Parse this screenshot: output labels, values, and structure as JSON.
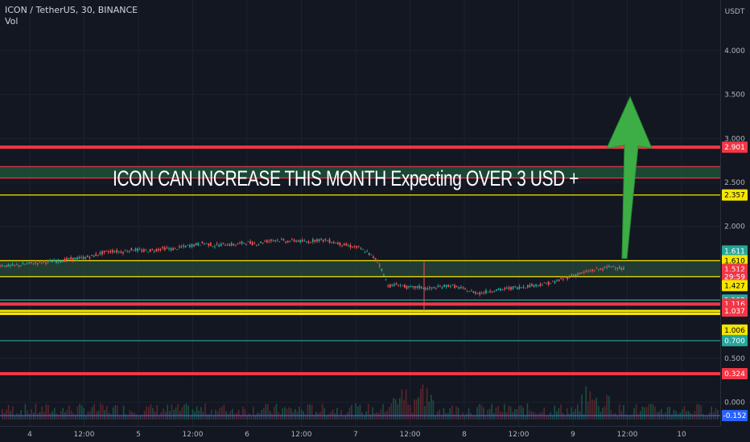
{
  "header": {
    "symbol_line": "ICON / TetherUS, 30, BINANCE",
    "indicator": "Vol"
  },
  "annotation": "ICON CAN INCREASE THIS MONTH Expecting OVER 3 USD +",
  "chart_data": {
    "type": "candlestick",
    "pair": "ICON / TetherUS",
    "interval": "30",
    "exchange": "BINANCE",
    "currency": "USDT",
    "y_ticks": [
      "4.000",
      "3.500",
      "3.000",
      "2.500",
      "2.000",
      "0.500",
      "0.000"
    ],
    "y_tick_values": [
      4.0,
      3.5,
      3.0,
      2.5,
      2.0,
      0.5,
      0.0
    ],
    "x_ticks": [
      "4",
      "12:00",
      "5",
      "12:00",
      "6",
      "12:00",
      "7",
      "12:00",
      "8",
      "12:00",
      "9",
      "12:00",
      "10"
    ],
    "horizontal_lines": [
      {
        "value": 2.901,
        "color": "#f23645"
      },
      {
        "value": 2.68,
        "color": "#f23645"
      },
      {
        "value": 2.55,
        "color": "#f23645"
      },
      {
        "value": 2.357,
        "color": "#f5e600"
      },
      {
        "value": 1.61,
        "color": "#f5e600"
      },
      {
        "value": 1.427,
        "color": "#f5e600"
      },
      {
        "value": 1.162,
        "color": "#26a69a"
      },
      {
        "value": 1.116,
        "color": "#f23645"
      },
      {
        "value": 1.037,
        "color": "#f5e600"
      },
      {
        "value": 1.006,
        "color": "#f5e600"
      },
      {
        "value": 0.7,
        "color": "#26a69a"
      },
      {
        "value": 0.324,
        "color": "#f23645"
      },
      {
        "value": -0.152,
        "color": "#2962ff"
      }
    ],
    "zones": [
      {
        "from": 2.55,
        "to": 2.68,
        "color": "#1e5a3c"
      },
      {
        "from": 1.427,
        "to": 1.61,
        "color": "#2a4a3a"
      }
    ],
    "price_badges": [
      {
        "label": "2.901",
        "value": 2.901,
        "bg": "#f23645",
        "fg": "#ffffff"
      },
      {
        "label": "2.357",
        "value": 2.357,
        "bg": "#f5e600",
        "fg": "#000000"
      },
      {
        "label": "1.611",
        "value": 1.72,
        "bg": "#26a69a",
        "fg": "#ffffff"
      },
      {
        "label": "1.610",
        "value": 1.61,
        "bg": "#f5e600",
        "fg": "#000000"
      },
      {
        "label": "1.512",
        "value": 1.512,
        "bg": "#f23645",
        "fg": "#ffffff"
      },
      {
        "label": "29:59",
        "value": 1.425,
        "bg": "#f23645",
        "fg": "#ffffff"
      },
      {
        "label": "1.427",
        "value": 1.327,
        "bg": "#f5e600",
        "fg": "#000000"
      },
      {
        "label": "1.162",
        "value": 1.162,
        "bg": "#26a69a",
        "fg": "#ffffff"
      },
      {
        "label": "1.116",
        "value": 1.116,
        "bg": "#f23645",
        "fg": "#ffffff"
      },
      {
        "label": "1.037",
        "value": 1.037,
        "bg": "#f23645",
        "fg": "#ffffff"
      },
      {
        "label": "1.006",
        "value": 0.82,
        "bg": "#f5e600",
        "fg": "#000000"
      },
      {
        "label": "0.700",
        "value": 0.7,
        "bg": "#26a69a",
        "fg": "#ffffff"
      },
      {
        "label": "0.324",
        "value": 0.324,
        "bg": "#f23645",
        "fg": "#ffffff"
      },
      {
        "label": "-0.152",
        "value": -0.152,
        "bg": "#2962ff",
        "fg": "#ffffff"
      }
    ],
    "price_path": [
      [
        0,
        1.56
      ],
      [
        1,
        1.55
      ],
      [
        2,
        1.56
      ],
      [
        3,
        1.58
      ],
      [
        4,
        1.59
      ],
      [
        5,
        1.6
      ],
      [
        6,
        1.61
      ],
      [
        7,
        1.63
      ],
      [
        8,
        1.64
      ],
      [
        9,
        1.66
      ],
      [
        10,
        1.7
      ],
      [
        11,
        1.72
      ],
      [
        12,
        1.71
      ],
      [
        13,
        1.74
      ],
      [
        14,
        1.72
      ],
      [
        15,
        1.73
      ],
      [
        16,
        1.75
      ],
      [
        17,
        1.74
      ],
      [
        18,
        1.77
      ],
      [
        19,
        1.79
      ],
      [
        20,
        1.81
      ],
      [
        21,
        1.78
      ],
      [
        22,
        1.8
      ],
      [
        23,
        1.79
      ],
      [
        24,
        1.82
      ],
      [
        25,
        1.8
      ],
      [
        26,
        1.83
      ],
      [
        27,
        1.85
      ],
      [
        28,
        1.83
      ],
      [
        29,
        1.84
      ],
      [
        30,
        1.82
      ],
      [
        31,
        1.85
      ],
      [
        32,
        1.84
      ],
      [
        33,
        1.81
      ],
      [
        34,
        1.78
      ],
      [
        35,
        1.76
      ],
      [
        36,
        1.7
      ],
      [
        37,
        1.6
      ],
      [
        38,
        1.32
      ],
      [
        39,
        1.34
      ],
      [
        40,
        1.3
      ],
      [
        41,
        1.31
      ],
      [
        42,
        1.29
      ],
      [
        43,
        1.31
      ],
      [
        44,
        1.33
      ],
      [
        45,
        1.3
      ],
      [
        46,
        1.26
      ],
      [
        47,
        1.24
      ],
      [
        48,
        1.27
      ],
      [
        49,
        1.28
      ],
      [
        50,
        1.3
      ],
      [
        51,
        1.31
      ],
      [
        52,
        1.33
      ],
      [
        53,
        1.34
      ],
      [
        54,
        1.36
      ],
      [
        55,
        1.4
      ],
      [
        56,
        1.44
      ],
      [
        57,
        1.47
      ],
      [
        58,
        1.5
      ],
      [
        59,
        1.52
      ],
      [
        60,
        1.55
      ],
      [
        61,
        1.51
      ]
    ],
    "arrow": {
      "from": 1.6,
      "to": 3.5,
      "color": "#3dae45"
    }
  }
}
